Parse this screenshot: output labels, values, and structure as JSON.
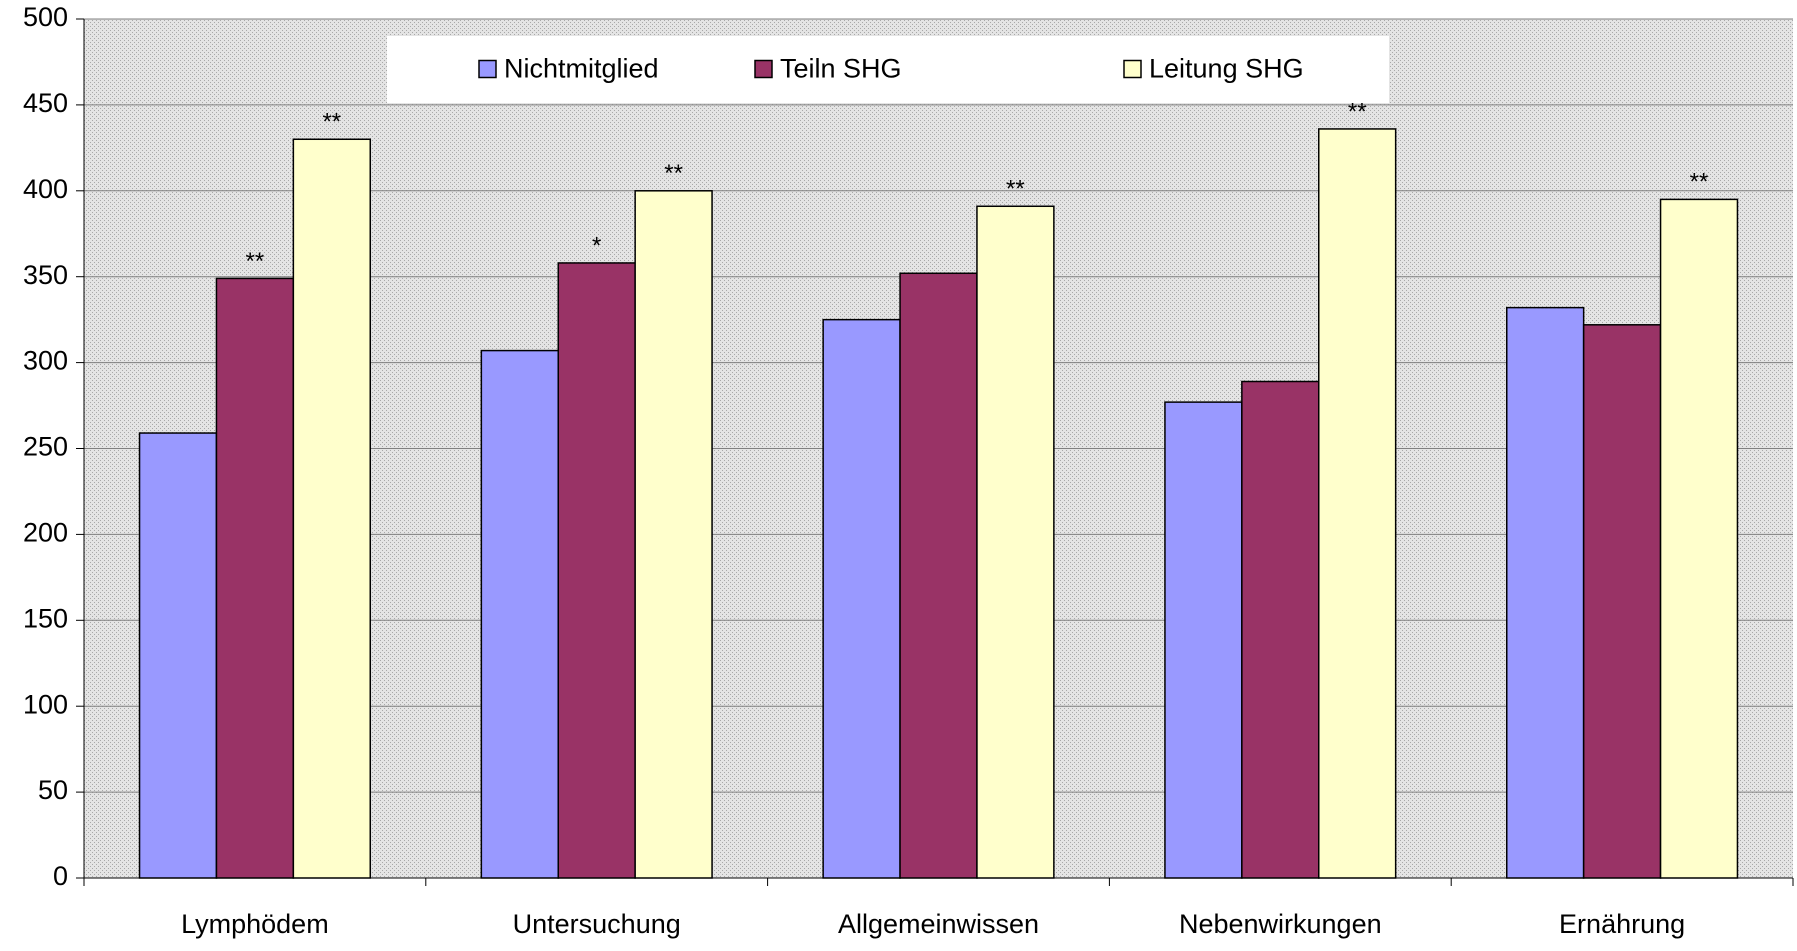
{
  "chart_data": {
    "type": "bar",
    "categories": [
      "Lymphödem",
      "Untersuchung",
      "Allgemeinwissen",
      "Nebenwirkungen",
      "Ernährung"
    ],
    "series": [
      {
        "name": "Nichtmitglied",
        "color": "#9999ff",
        "values": [
          259,
          307,
          325,
          277,
          332
        ],
        "annotations": [
          null,
          null,
          null,
          null,
          null
        ]
      },
      {
        "name": "Teiln SHG",
        "color": "#993366",
        "values": [
          349,
          358,
          352,
          289,
          322
        ],
        "annotations": [
          "**",
          "*",
          null,
          null,
          null
        ]
      },
      {
        "name": "Leitung SHG",
        "color": "#ffffcc",
        "values": [
          430,
          400,
          391,
          436,
          395
        ],
        "annotations": [
          "**",
          "**",
          "**",
          "**",
          "**"
        ]
      }
    ],
    "ylim": [
      0,
      500
    ],
    "yticks": [
      0,
      50,
      100,
      150,
      200,
      250,
      300,
      350,
      400,
      450,
      500
    ],
    "grid": true,
    "legend": "top"
  }
}
